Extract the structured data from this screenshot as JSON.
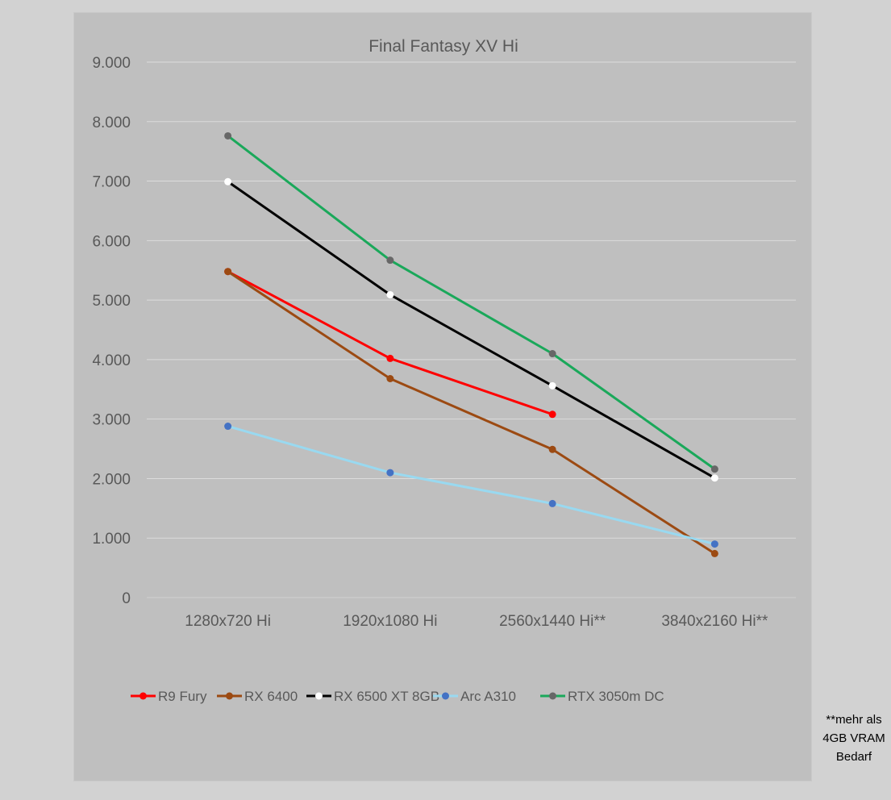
{
  "chart_data": {
    "type": "line",
    "title": "Final Fantasy XV Hi",
    "categories": [
      "1280x720 Hi",
      "1920x1080 Hi",
      "2560x1440 Hi**",
      "3840x2160 Hi**"
    ],
    "y_ticks": [
      "0",
      "1.000",
      "2.000",
      "3.000",
      "4.000",
      "5.000",
      "6.000",
      "7.000",
      "8.000",
      "9.000"
    ],
    "ylim": [
      0,
      9000
    ],
    "grid": true,
    "legend_position": "bottom",
    "series": [
      {
        "name": "R9 Fury",
        "values": [
          5480,
          4020,
          3080,
          null
        ],
        "color": "#ff0000",
        "marker_color": "#ff0000"
      },
      {
        "name": "RX 6400",
        "values": [
          5480,
          3680,
          2490,
          740
        ],
        "color": "#9c4a12",
        "marker_color": "#9c4a12"
      },
      {
        "name": "RX 6500 XT 8GB",
        "values": [
          6990,
          5090,
          3560,
          2010
        ],
        "color": "#000000",
        "marker_color": "#ffffff"
      },
      {
        "name": "Arc A310",
        "values": [
          2880,
          2100,
          1580,
          900
        ],
        "color": "#99d9f0",
        "marker_color": "#4472c4"
      },
      {
        "name": "RTX 3050m DC",
        "values": [
          7760,
          5670,
          4100,
          2160
        ],
        "color": "#1aa85a",
        "marker_color": "#676767"
      }
    ]
  },
  "note": [
    "**mehr als",
    "4GB VRAM",
    "Bedarf"
  ]
}
